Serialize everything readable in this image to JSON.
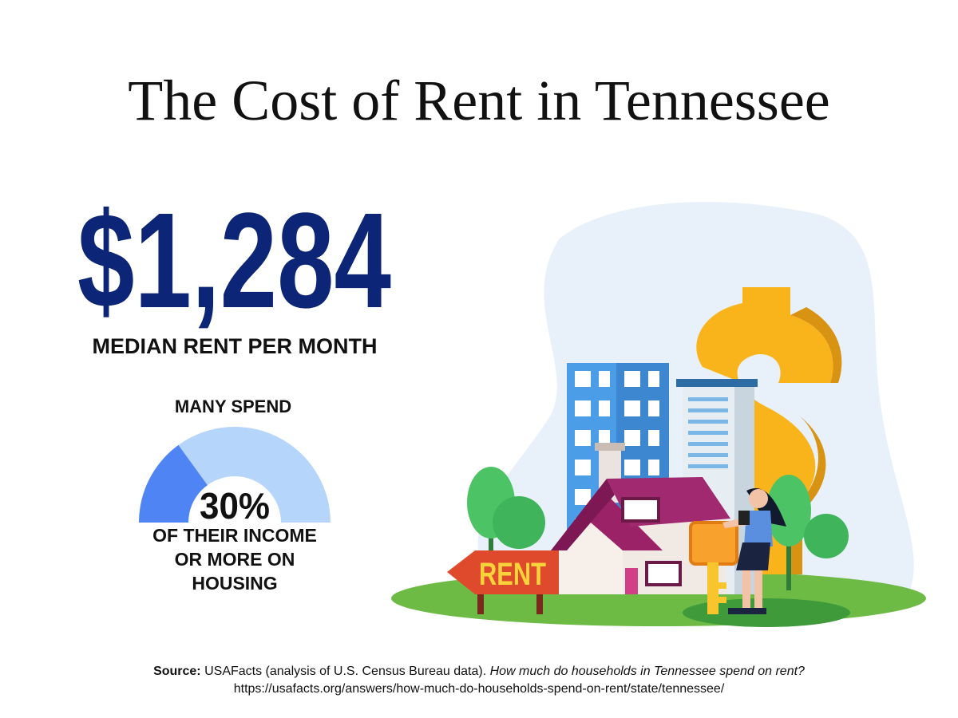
{
  "title": "The Cost of Rent in Tennessee",
  "headline": {
    "amount": "$1,284",
    "caption": "MEDIAN RENT PER MONTH"
  },
  "gauge": {
    "intro": "MANY SPEND",
    "value": 30,
    "label": "30%",
    "caption_lines": [
      "OF THEIR INCOME",
      "OR MORE ON",
      "HOUSING"
    ]
  },
  "illustration": {
    "sign": "RENT"
  },
  "source": {
    "label": "Source:",
    "text": "USAFacts (analysis of U.S. Census Bureau data).",
    "question": "How much do households in Tennessee spend on rent?",
    "url": "https://usafacts.org/answers/how-much-do-households-spend-on-rent/state/tennessee/"
  }
}
